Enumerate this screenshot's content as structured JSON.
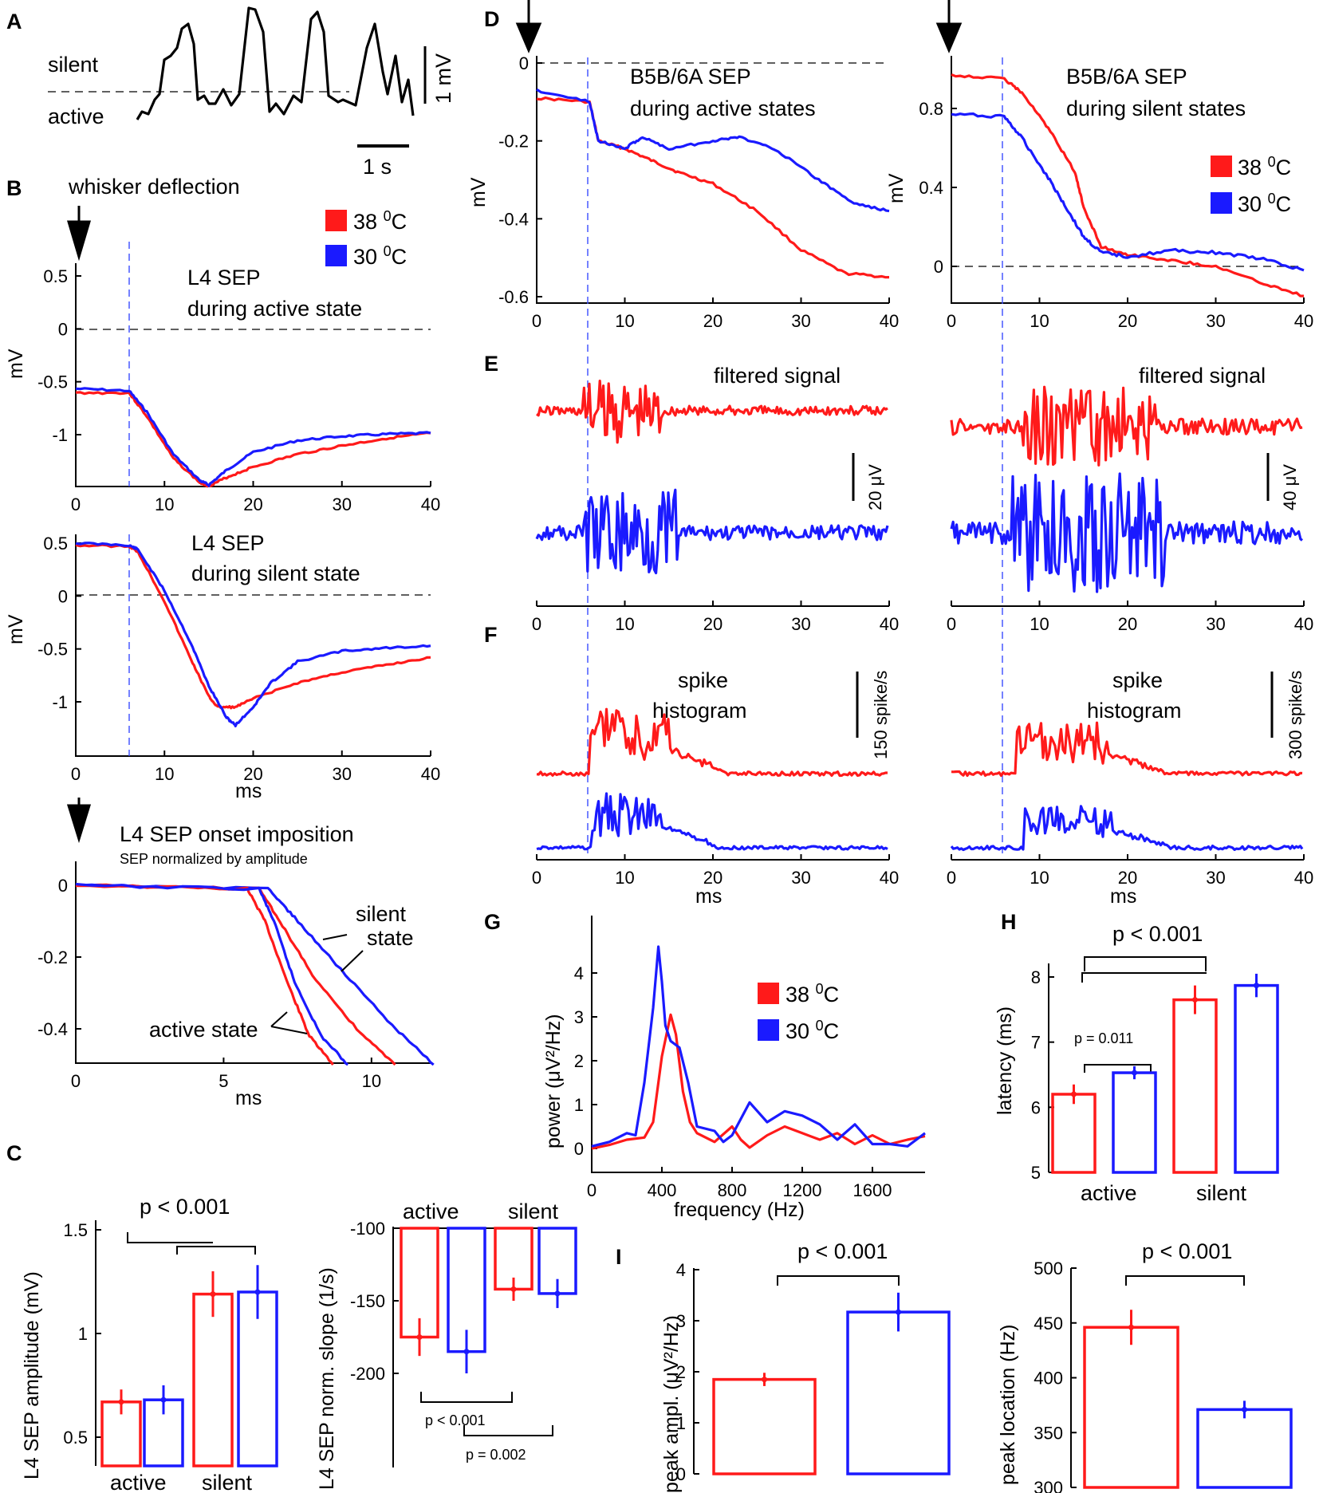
{
  "colors": {
    "hot": "#ff1a1a",
    "cold": "#1a1aff",
    "onset": "#3a4cff"
  },
  "labels": {
    "A": "A",
    "B": "B",
    "C": "C",
    "D": "D",
    "E": "E",
    "F": "F",
    "G": "G",
    "H": "H",
    "I": "I",
    "silent": "silent",
    "active": "active",
    "one_mv": "1 mV",
    "one_s": "1 s",
    "whisker": "whisker deflection",
    "t38": "38",
    "t30": "30",
    "deg": "0",
    "C_unit": "C",
    "mV": "mV",
    "ms": "ms",
    "l4_title1": "L4 SEP",
    "l4_act2": "during active state",
    "l4_sil2": "during silent state",
    "onset_title": "L4 SEP onset imposition",
    "onset_sub": "SEP normalized by amplitude",
    "silent_state1": "silent",
    "silent_state2": "state",
    "active_state": "active state",
    "d_act1": "B5B/6A SEP",
    "d_act2": "during active states",
    "d_sil1": "B5B/6A SEP",
    "d_sil2": "during silent states",
    "filtered": "filtered signal",
    "sb20": "20 μV",
    "sb40": "40 μV",
    "spike1": "spike",
    "spike2": "histogram",
    "sb150": "150 spike/s",
    "sb300": "300 spike/s",
    "power_y": "power (μV²/Hz)",
    "freq_x": "frequency (Hz)",
    "amp_y": "L4 SEP amplitude (mV)",
    "slope_y": "L4 SEP norm. slope (1/s)",
    "lat_y": "latency (ms)",
    "peak_ampl_y": "peak ampl. (μV²/Hz)",
    "peak_loc_y": "peak location (Hz)",
    "p001": "p < 0.001",
    "p011": "p = 0.011",
    "p002": "p = 0.002",
    "grp_active": "active",
    "grp_silent": "silent"
  },
  "chart_data": [
    {
      "panel": "A",
      "type": "line",
      "title": "",
      "xlabel": "",
      "ylabel": "",
      "series": [
        {
          "name": "LFP trace",
          "description": "slow oscillation with alternating active and silent states"
        }
      ],
      "annotations": [
        "silent",
        "active",
        "1 mV",
        "1 s"
      ]
    },
    {
      "panel": "B1",
      "type": "line",
      "title": "L4 SEP during active state",
      "xlabel": "",
      "ylabel": "mV",
      "xlim": [
        0,
        40
      ],
      "ylim": [
        -1.5,
        0.6
      ],
      "xticks": [
        0,
        10,
        20,
        30,
        40
      ],
      "yticks": [
        0.5,
        0,
        -0.5,
        -1
      ],
      "onset_ms": 6,
      "series": [
        {
          "name": "38 0C",
          "x": [
            0,
            6,
            8,
            11,
            14,
            15,
            17,
            20,
            25,
            30,
            35,
            40
          ],
          "y": [
            -0.1,
            -0.1,
            -0.32,
            -0.72,
            -0.95,
            -0.98,
            -0.9,
            -0.8,
            -0.68,
            -0.6,
            -0.53,
            -0.48
          ]
        },
        {
          "name": "30 0C",
          "x": [
            0,
            6,
            8,
            11,
            14,
            15,
            17,
            20,
            25,
            30,
            35,
            40
          ],
          "y": [
            -0.06,
            -0.08,
            -0.28,
            -0.68,
            -0.93,
            -0.97,
            -0.83,
            -0.66,
            -0.55,
            -0.51,
            -0.49,
            -0.48
          ]
        }
      ]
    },
    {
      "panel": "B2",
      "type": "line",
      "title": "L4 SEP during silent state",
      "xlabel": "ms",
      "ylabel": "mV",
      "xlim": [
        0,
        40
      ],
      "ylim": [
        -1.6,
        0.6
      ],
      "xticks": [
        0,
        10,
        20,
        30,
        40
      ],
      "yticks": [
        0.5,
        0,
        -0.5,
        -1
      ],
      "onset_ms": 6,
      "series": [
        {
          "name": "38 0C",
          "x": [
            0,
            6,
            7,
            10,
            13,
            15,
            16,
            18,
            20,
            25,
            30,
            35,
            40
          ],
          "y": [
            0.48,
            0.47,
            0.42,
            -0.05,
            -0.6,
            -0.95,
            -1.05,
            -1.05,
            -0.97,
            -0.82,
            -0.72,
            -0.65,
            -0.58
          ]
        },
        {
          "name": "30 0C",
          "x": [
            0,
            6,
            7,
            10,
            13,
            15,
            17,
            18,
            20,
            22,
            25,
            30,
            35,
            40
          ],
          "y": [
            0.5,
            0.48,
            0.44,
            0.05,
            -0.45,
            -0.85,
            -1.15,
            -1.22,
            -1.05,
            -0.82,
            -0.62,
            -0.52,
            -0.49,
            -0.47
          ]
        }
      ]
    },
    {
      "panel": "B3",
      "type": "line",
      "title": "L4 SEP onset imposition",
      "subtitle": "SEP normalized by amplitude",
      "xlabel": "ms",
      "ylabel": "",
      "xlim": [
        0,
        12
      ],
      "ylim": [
        -0.5,
        0.03
      ],
      "xticks": [
        0,
        5,
        10
      ],
      "yticks": [
        0,
        -0.2,
        -0.4
      ],
      "series": [
        {
          "name": "38 0C active",
          "x": [
            0,
            5.8,
            6.4,
            7.2,
            7.9,
            8.7
          ],
          "y": [
            0,
            -0.01,
            -0.1,
            -0.28,
            -0.42,
            -0.5
          ]
        },
        {
          "name": "30 0C active",
          "x": [
            0,
            6.2,
            6.7,
            7.4,
            8.3,
            9.2
          ],
          "y": [
            0,
            -0.01,
            -0.1,
            -0.27,
            -0.42,
            -0.5
          ]
        },
        {
          "name": "38 0C silent",
          "x": [
            0,
            6.2,
            6.9,
            8,
            9.5,
            10.8
          ],
          "y": [
            0,
            -0.01,
            -0.1,
            -0.25,
            -0.4,
            -0.5
          ]
        },
        {
          "name": "30 0C silent",
          "x": [
            0,
            6.5,
            7.4,
            8.8,
            10.7,
            12.1
          ],
          "y": [
            0,
            -0.01,
            -0.09,
            -0.22,
            -0.39,
            -0.5
          ]
        }
      ],
      "annotations": [
        "silent state",
        "active state"
      ]
    },
    {
      "panel": "C1",
      "type": "bar",
      "xlabel": "",
      "ylabel": "L4 SEP amplitude (mV)",
      "ylim": [
        0.4,
        1.5
      ],
      "yticks": [
        0.5,
        1,
        1.5
      ],
      "categories": [
        "active",
        "silent"
      ],
      "series": [
        {
          "name": "38 0C",
          "values": [
            0.67,
            1.19
          ],
          "errors": [
            0.06,
            0.11
          ]
        },
        {
          "name": "30 0C",
          "values": [
            0.68,
            1.2
          ],
          "errors": [
            0.07,
            0.13
          ]
        }
      ],
      "significance": [
        "p < 0.001"
      ]
    },
    {
      "panel": "C2",
      "type": "bar",
      "xlabel": "",
      "ylabel": "L4 SEP norm. slope (1/s)",
      "ylim": [
        -240,
        -100
      ],
      "yticks": [
        -100,
        -150,
        -200
      ],
      "categories": [
        "active",
        "silent"
      ],
      "series": [
        {
          "name": "38 0C",
          "values": [
            -175,
            -142
          ],
          "errors": [
            13,
            8
          ]
        },
        {
          "name": "30 0C",
          "values": [
            -185,
            -145
          ],
          "errors": [
            15,
            10
          ]
        }
      ],
      "significance": [
        "p < 0.001",
        "p = 0.002"
      ]
    },
    {
      "panel": "D1",
      "type": "line",
      "title": "B5B/6A SEP during active states",
      "xlabel": "",
      "ylabel": "mV",
      "xlim": [
        0,
        40
      ],
      "ylim": [
        -0.62,
        0.02
      ],
      "xticks": [
        0,
        10,
        20,
        30,
        40
      ],
      "yticks": [
        0,
        -0.2,
        -0.4,
        -0.6
      ],
      "onset_ms": 6,
      "series": [
        {
          "name": "38 0C",
          "x": [
            0,
            6,
            7,
            10,
            13,
            16,
            20,
            25,
            30,
            35,
            40
          ],
          "y": [
            -0.09,
            -0.1,
            -0.2,
            -0.22,
            -0.25,
            -0.28,
            -0.31,
            -0.38,
            -0.48,
            -0.54,
            -0.55
          ]
        },
        {
          "name": "30 0C",
          "x": [
            0,
            6,
            7,
            10,
            12,
            15,
            20,
            23,
            27,
            32,
            36,
            40
          ],
          "y": [
            -0.07,
            -0.1,
            -0.2,
            -0.22,
            -0.19,
            -0.22,
            -0.2,
            -0.19,
            -0.22,
            -0.3,
            -0.36,
            -0.38
          ]
        }
      ]
    },
    {
      "panel": "D2",
      "type": "line",
      "title": "B5B/6A SEP during silent states",
      "xlabel": "",
      "ylabel": "mV",
      "xlim": [
        0,
        40
      ],
      "ylim": [
        -0.1,
        1.0
      ],
      "xticks": [
        0,
        10,
        20,
        30,
        40
      ],
      "yticks": [
        0.8,
        0.4,
        0
      ],
      "onset_ms": 6,
      "series": [
        {
          "name": "38 0C",
          "x": [
            0,
            6,
            8,
            11,
            14,
            15,
            17,
            20,
            25,
            30,
            35,
            40
          ],
          "y": [
            0.97,
            0.95,
            0.88,
            0.7,
            0.48,
            0.3,
            0.1,
            0.06,
            0.03,
            0,
            -0.08,
            -0.15
          ]
        },
        {
          "name": "30 0C",
          "x": [
            0,
            6,
            8,
            11,
            13,
            15,
            17,
            20,
            25,
            30,
            35,
            40
          ],
          "y": [
            0.77,
            0.76,
            0.65,
            0.45,
            0.3,
            0.15,
            0.07,
            0.05,
            0.08,
            0.07,
            0.04,
            -0.02
          ]
        }
      ]
    },
    {
      "panel": "E1",
      "type": "line",
      "title": "filtered signal",
      "xlabel": "",
      "xlim": [
        0,
        40
      ],
      "xticks": [
        0,
        10,
        20,
        30,
        40
      ],
      "scalebar": "20 μV",
      "series": [
        {
          "name": "38 0C"
        },
        {
          "name": "30 0C"
        }
      ]
    },
    {
      "panel": "E2",
      "type": "line",
      "title": "filtered signal",
      "xlabel": "",
      "xlim": [
        0,
        40
      ],
      "xticks": [
        0,
        10,
        20,
        30,
        40
      ],
      "scalebar": "40 μV",
      "series": [
        {
          "name": "38 0C"
        },
        {
          "name": "30 0C"
        }
      ]
    },
    {
      "panel": "F1",
      "type": "line",
      "title": "spike histogram",
      "xlabel": "ms",
      "xlim": [
        0,
        40
      ],
      "xticks": [
        0,
        10,
        20,
        30,
        40
      ],
      "scalebar": "150 spike/s",
      "series": [
        {
          "name": "38 0C"
        },
        {
          "name": "30 0C"
        }
      ]
    },
    {
      "panel": "F2",
      "type": "line",
      "title": "spike histogram",
      "xlabel": "ms",
      "xlim": [
        0,
        40
      ],
      "xticks": [
        0,
        10,
        20,
        30,
        40
      ],
      "scalebar": "300 spike/s",
      "series": [
        {
          "name": "38 0C"
        },
        {
          "name": "30 0C"
        }
      ]
    },
    {
      "panel": "G",
      "type": "line",
      "title": "",
      "xlabel": "frequency (Hz)",
      "ylabel": "power (μV²/Hz)",
      "xlim": [
        0,
        1900
      ],
      "ylim": [
        -0.2,
        4.8
      ],
      "xticks": [
        0,
        400,
        800,
        1200,
        1600
      ],
      "yticks": [
        0,
        1,
        2,
        3,
        4
      ],
      "series": [
        {
          "name": "38 0C",
          "x": [
            0,
            100,
            200,
            300,
            350,
            400,
            450,
            480,
            520,
            560,
            600,
            700,
            800,
            850,
            900,
            1000,
            1100,
            1200,
            1300,
            1400,
            1500,
            1600,
            1700,
            1800,
            1900
          ],
          "y": [
            0,
            0.08,
            0.2,
            0.25,
            0.6,
            2.1,
            3.05,
            2.6,
            1.3,
            0.6,
            0.35,
            0.15,
            0.5,
            0.2,
            0.02,
            0.3,
            0.5,
            0.35,
            0.2,
            0.35,
            0.1,
            0.3,
            0.1,
            0.2,
            0.28
          ]
        },
        {
          "name": "30 0C",
          "x": [
            0,
            100,
            200,
            250,
            300,
            350,
            380,
            400,
            420,
            450,
            500,
            550,
            600,
            700,
            750,
            800,
            900,
            1000,
            1100,
            1200,
            1300,
            1400,
            1500,
            1600,
            1700,
            1800,
            1900
          ],
          "y": [
            0.05,
            0.15,
            0.35,
            0.3,
            1.5,
            3.2,
            4.6,
            3.8,
            2.8,
            2.45,
            2.3,
            1.5,
            0.5,
            0.4,
            0.15,
            0.3,
            1.05,
            0.6,
            0.85,
            0.75,
            0.55,
            0.2,
            0.55,
            0.1,
            0.1,
            0.05,
            0.35
          ]
        }
      ]
    },
    {
      "panel": "H",
      "type": "bar",
      "xlabel": "",
      "ylabel": "latency (ms)",
      "ylim": [
        5,
        8.4
      ],
      "yticks": [
        5,
        6,
        7,
        8
      ],
      "categories": [
        "active",
        "silent"
      ],
      "series": [
        {
          "name": "38 0C",
          "values": [
            6.2,
            7.65
          ],
          "errors": [
            0.15,
            0.22
          ]
        },
        {
          "name": "30 0C",
          "values": [
            6.53,
            7.87
          ],
          "errors": [
            0.1,
            0.18
          ]
        }
      ],
      "significance": [
        "p < 0.001",
        "p = 0.011"
      ]
    },
    {
      "panel": "I1",
      "type": "bar",
      "xlabel": "",
      "ylabel": "peak ampl. (μV²/Hz)",
      "ylim": [
        0,
        4
      ],
      "yticks": [
        0,
        1,
        2,
        3,
        4
      ],
      "categories": [
        "38 0C",
        "30 0C"
      ],
      "values": [
        1.85,
        3.17
      ],
      "errors": [
        0.13,
        0.38
      ],
      "significance": [
        "p < 0.001"
      ]
    },
    {
      "panel": "I2",
      "type": "bar",
      "xlabel": "",
      "ylabel": "peak location (Hz)",
      "ylim": [
        300,
        500
      ],
      "yticks": [
        300,
        350,
        400,
        450,
        500
      ],
      "categories": [
        "38 0C",
        "30 0C"
      ],
      "values": [
        446,
        371
      ],
      "errors": [
        16,
        8
      ],
      "significance": [
        "p < 0.001"
      ]
    }
  ]
}
